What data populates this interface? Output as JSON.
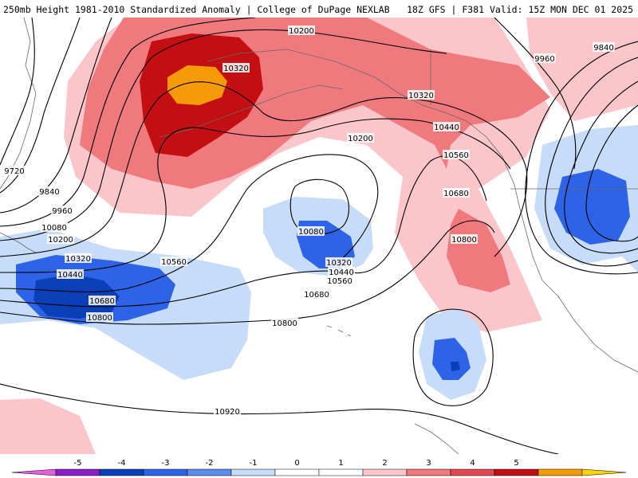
{
  "header": {
    "left_title": "250mb Height 1981-2010 Standardized Anomaly | College of DuPage NEXLAB",
    "right_title": "18Z GFS | F381 Valid: 15Z MON DEC 01 2025"
  },
  "contour_labels": [
    "10200",
    "10320",
    "9960",
    "9840",
    "10320",
    "10440",
    "10200",
    "10560",
    "10680",
    "10800",
    "10080",
    "10320",
    "10440",
    "10560",
    "10680",
    "9720",
    "9840",
    "9960",
    "10080",
    "10200",
    "10320",
    "10440",
    "10680",
    "10800",
    "10560",
    "10800",
    "10920"
  ],
  "colorbar": {
    "ticks": [
      "-5",
      "-4",
      "-3",
      "-2",
      "-1",
      "0",
      "1",
      "2",
      "3",
      "4",
      "5"
    ],
    "colors": [
      "#e85ee0",
      "#8a1fc6",
      "#0b3fb8",
      "#2d63e6",
      "#5c8cf0",
      "#c6dcf8",
      "#ffffff",
      "#ffffff",
      "#fbc6c9",
      "#f0797d",
      "#e14750",
      "#c30e12",
      "#f79a08",
      "#ffd400"
    ]
  }
}
